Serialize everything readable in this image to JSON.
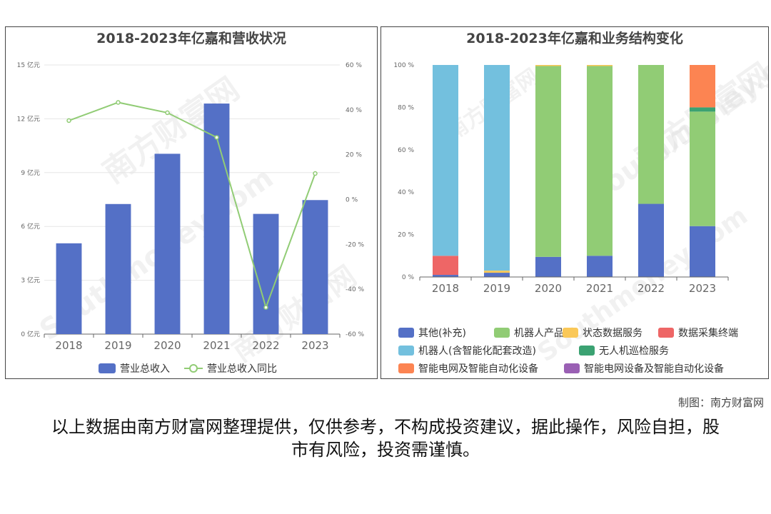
{
  "chart_data": [
    {
      "type": "bar+line",
      "title": "2018-2023年亿嘉和营收状况",
      "categories": [
        "2018",
        "2019",
        "2020",
        "2021",
        "2022",
        "2023"
      ],
      "y_left": {
        "ticks": [
          "0 亿元",
          "3 亿元",
          "6 亿元",
          "9 亿元",
          "12 亿元",
          "15 亿元"
        ],
        "range": [
          0,
          15
        ]
      },
      "y_right": {
        "ticks": [
          "-60 %",
          "-40 %",
          "-20 %",
          "0 %",
          "20 %",
          "40 %",
          "60 %"
        ],
        "range": [
          -60,
          60
        ]
      },
      "series": [
        {
          "name": "营业总收入",
          "kind": "bar",
          "axis": "left",
          "color": "#5470c6",
          "values": [
            5.06,
            7.25,
            10.05,
            12.85,
            6.7,
            7.47
          ]
        },
        {
          "name": "营业总收入同比",
          "kind": "line",
          "axis": "right",
          "color": "#91cc75",
          "values": [
            35.2,
            43.3,
            38.7,
            27.7,
            -48.1,
            11.6
          ]
        }
      ],
      "legend_position": "bottom",
      "grid": true
    },
    {
      "type": "stacked-bar-percent",
      "title": "2018-2023年亿嘉和业务结构变化",
      "categories": [
        "2018",
        "2019",
        "2020",
        "2021",
        "2022",
        "2023"
      ],
      "y_axis": {
        "ticks": [
          "0 %",
          "20 %",
          "40 %",
          "60 %",
          "80 %",
          "100 %"
        ],
        "range": [
          0,
          100
        ]
      },
      "series": [
        {
          "name": "其他(补充)",
          "color": "#5470c6",
          "values": [
            1,
            2,
            9.5,
            10,
            34.5,
            24
          ]
        },
        {
          "name": "机器人产品",
          "color": "#91cc75",
          "values": [
            0,
            0,
            90,
            89.5,
            65.5,
            54
          ]
        },
        {
          "name": "状态数据服务",
          "color": "#fac858",
          "values": [
            0,
            1,
            0.5,
            0.5,
            0,
            0
          ]
        },
        {
          "name": "数据采集终端",
          "color": "#ee6666",
          "values": [
            9,
            0,
            0,
            0,
            0,
            0
          ]
        },
        {
          "name": "机器人(含智能化配套改造)",
          "color": "#73c0de",
          "values": [
            90,
            97,
            0,
            0,
            0,
            0
          ]
        },
        {
          "name": "无人机巡检服务",
          "color": "#3ba272",
          "values": [
            0,
            0,
            0,
            0,
            0,
            2
          ]
        },
        {
          "name": "智能电网及智能自动化设备",
          "color": "#fc8452",
          "values": [
            0,
            0,
            0,
            0,
            0,
            20
          ]
        },
        {
          "name": "智能电网设备及智能自动化设备",
          "color": "#9a60b4",
          "values": [
            0,
            0,
            0,
            0,
            0,
            0
          ]
        }
      ],
      "legend_position": "bottom",
      "grid": false
    }
  ],
  "watermark": {
    "brand": "南方财富网",
    "site": "Southmoney.com"
  },
  "credit": "制图：南方财富网",
  "disclaimer": "以上数据由南方财富网整理提供，仅供参考，不构成投资建议，据此操作，风险自担，股市有风险，投资需谨慎。"
}
